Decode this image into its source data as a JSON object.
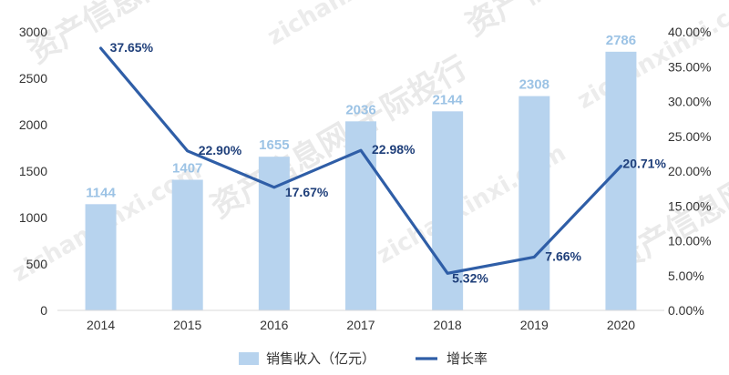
{
  "chart_data": {
    "type": "bar",
    "title": "",
    "xlabel": "",
    "ylabel": "",
    "categories": [
      "2014",
      "2015",
      "2016",
      "2017",
      "2018",
      "2019",
      "2020"
    ],
    "series": [
      {
        "name": "销售收入（亿元）",
        "type": "bar",
        "axis": "left",
        "values": [
          1144,
          1407,
          1655,
          2036,
          2144,
          2308,
          2786
        ],
        "labels": [
          "1144",
          "1407",
          "1655",
          "2036",
          "2144",
          "2308",
          "2786"
        ],
        "color": "#b7d3ee"
      },
      {
        "name": "增长率",
        "type": "line",
        "axis": "right",
        "values": [
          37.65,
          22.9,
          17.67,
          22.98,
          5.32,
          7.66,
          20.71
        ],
        "labels": [
          "37.65%",
          "22.90%",
          "17.67%",
          "22.98%",
          "5.32%",
          "7.66%",
          "20.71%"
        ],
        "color": "#2f5ea7"
      }
    ],
    "left_axis": {
      "ylim": [
        0,
        3000
      ],
      "ticks": [
        "0",
        "500",
        "1000",
        "1500",
        "2000",
        "2500",
        "3000"
      ]
    },
    "right_axis": {
      "ylim": [
        0,
        40
      ],
      "ticks": [
        "0.00%",
        "5.00%",
        "10.00%",
        "15.00%",
        "20.00%",
        "25.00%",
        "30.00%",
        "35.00%",
        "40.00%"
      ]
    },
    "grid": false,
    "legend": {
      "placement": "bottom",
      "entries": [
        {
          "name": "销售收入（亿元）",
          "kind": "bar",
          "color": "#b7d3ee"
        },
        {
          "name": "增长率",
          "kind": "line",
          "color": "#2f5ea7"
        }
      ]
    },
    "label_colors": {
      "bar": "#9cc3e5",
      "line": "#1f3f7a"
    }
  },
  "watermark": {
    "phrases": [
      "资产信息网 千际投行",
      "zichanxinxi.com"
    ]
  }
}
